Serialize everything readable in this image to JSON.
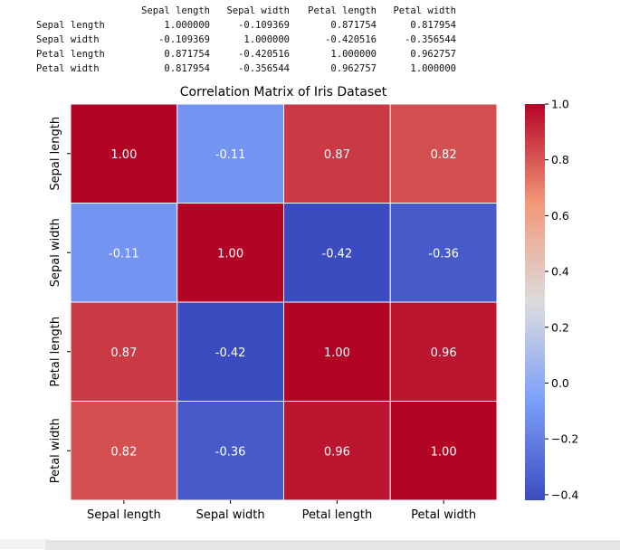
{
  "printout": {
    "columns": [
      "Sepal length",
      "Sepal width",
      "Petal length",
      "Petal width"
    ],
    "rows": [
      {
        "label": "Sepal length",
        "values": [
          "1.000000",
          "-0.109369",
          "0.871754",
          "0.817954"
        ]
      },
      {
        "label": "Sepal width",
        "values": [
          "-0.109369",
          "1.000000",
          "-0.420516",
          "-0.356544"
        ]
      },
      {
        "label": "Petal length",
        "values": [
          "0.871754",
          "-0.420516",
          "1.000000",
          "0.962757"
        ]
      },
      {
        "label": "Petal width",
        "values": [
          "0.817954",
          "-0.356544",
          "0.962757",
          "1.000000"
        ]
      }
    ]
  },
  "chart_data": {
    "type": "heatmap",
    "title": "Correlation Matrix of Iris Dataset",
    "x_categories": [
      "Sepal length",
      "Sepal width",
      "Petal length",
      "Petal width"
    ],
    "y_categories": [
      "Sepal length",
      "Sepal width",
      "Petal length",
      "Petal width"
    ],
    "values": [
      [
        1.0,
        -0.11,
        0.87,
        0.82
      ],
      [
        -0.11,
        1.0,
        -0.42,
        -0.36
      ],
      [
        0.87,
        -0.42,
        1.0,
        0.96
      ],
      [
        0.82,
        -0.36,
        0.96,
        1.0
      ]
    ],
    "annotations": [
      [
        "1.00",
        "-0.11",
        "0.87",
        "0.82"
      ],
      [
        "-0.11",
        "1.00",
        "-0.42",
        "-0.36"
      ],
      [
        "0.87",
        "-0.42",
        "1.00",
        "0.96"
      ],
      [
        "0.82",
        "-0.36",
        "0.96",
        "1.00"
      ]
    ],
    "colormap": "coolwarm",
    "vmin": -0.42,
    "vmax": 1.0,
    "colorbar_ticks": [
      1.0,
      0.8,
      0.6,
      0.4,
      0.2,
      0.0,
      -0.2,
      -0.4
    ],
    "colorbar_tick_labels": [
      "1.0",
      "0.8",
      "0.6",
      "0.4",
      "0.2",
      "0.0",
      "−0.2",
      "−0.4"
    ],
    "grid": false
  }
}
